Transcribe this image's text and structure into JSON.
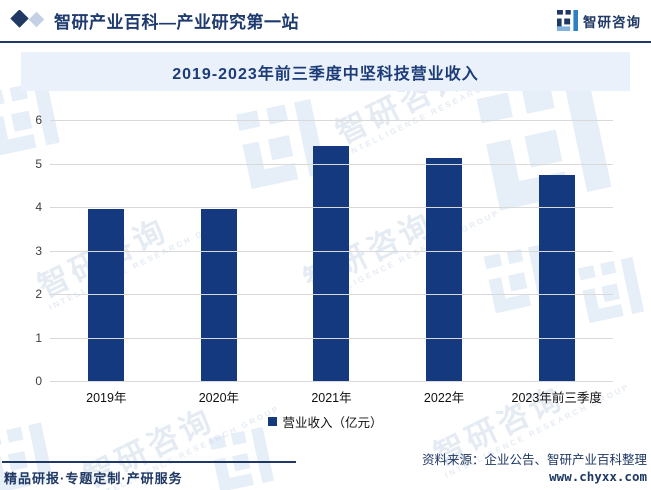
{
  "header": {
    "brand_title": "智研产业百科—产业研究第一站",
    "logo_text": "智研咨询",
    "accent_color": "#1F3864"
  },
  "chart_data": {
    "type": "bar",
    "title": "2019-2023年前三季度中坚科技营业收入",
    "categories": [
      "2019年",
      "2020年",
      "2021年",
      "2022年",
      "2023年前三季度"
    ],
    "values": [
      3.95,
      3.95,
      5.4,
      5.12,
      4.73
    ],
    "series_name": "营业收入（亿元）",
    "unit": "亿元",
    "ylim": [
      0,
      6
    ],
    "yticks": [
      0,
      1,
      2,
      3,
      4,
      5,
      6
    ],
    "grid": true,
    "legend_position": "bottom",
    "bar_color": "#15397F",
    "gridline_color": "#D9D9D9"
  },
  "footer": {
    "services_tagline": "精品研报·专题定制·产研服务",
    "source_note": "资料来源：企业公告、智研产业百科整理",
    "website": "www.chyxx.com"
  },
  "watermark": {
    "text": "智研咨询",
    "subtext": "INTELLIGENCE RESEARCH GROUP"
  }
}
